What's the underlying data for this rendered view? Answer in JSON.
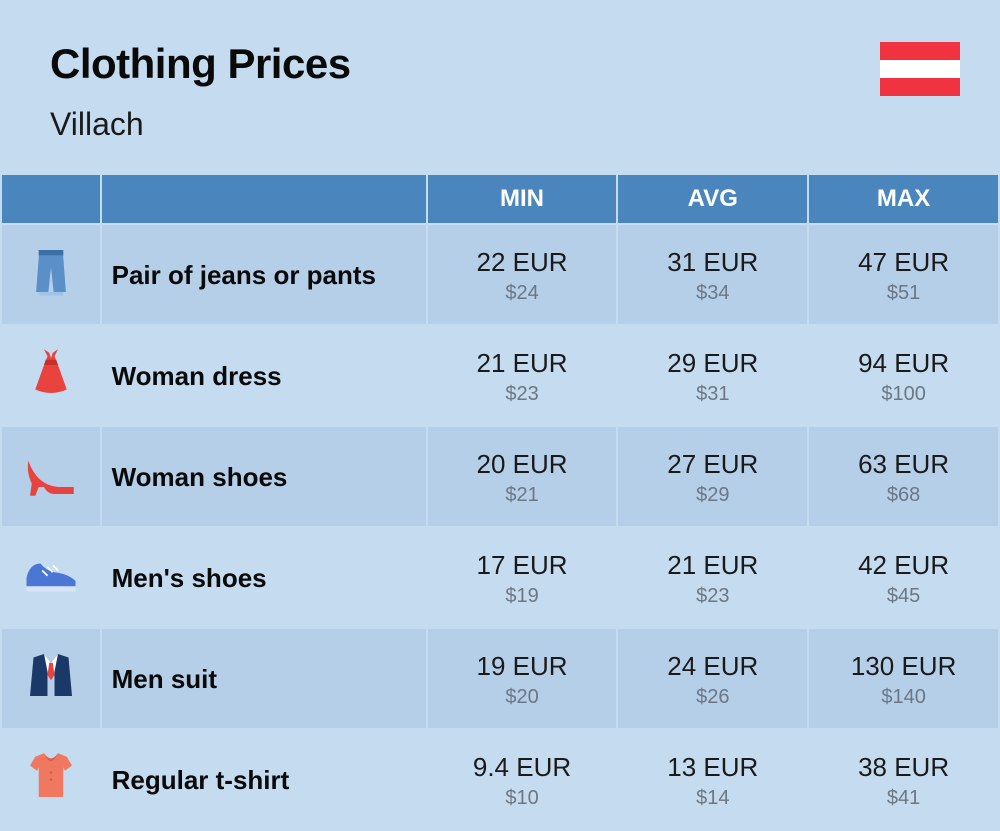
{
  "header": {
    "title": "Clothing Prices",
    "subtitle": "Villach"
  },
  "flag": {
    "country": "Austria",
    "colors": [
      "#ef3340",
      "#ffffff",
      "#ef3340"
    ]
  },
  "table": {
    "columns": [
      "MIN",
      "AVG",
      "MAX"
    ],
    "header_bg": "#4a86bd",
    "header_text_color": "#ffffff",
    "row_colors": [
      "#b6cfe8",
      "#c5dcf0"
    ],
    "eur_fontsize": 26,
    "usd_fontsize": 20,
    "usd_color": "#6b7785",
    "rows": [
      {
        "icon": "jeans",
        "label": "Pair of jeans or pants",
        "min_eur": "22 EUR",
        "min_usd": "$24",
        "avg_eur": "31 EUR",
        "avg_usd": "$34",
        "max_eur": "47 EUR",
        "max_usd": "$51"
      },
      {
        "icon": "dress",
        "label": "Woman dress",
        "min_eur": "21 EUR",
        "min_usd": "$23",
        "avg_eur": "29 EUR",
        "avg_usd": "$31",
        "max_eur": "94 EUR",
        "max_usd": "$100"
      },
      {
        "icon": "heel",
        "label": "Woman shoes",
        "min_eur": "20 EUR",
        "min_usd": "$21",
        "avg_eur": "27 EUR",
        "avg_usd": "$29",
        "max_eur": "63 EUR",
        "max_usd": "$68"
      },
      {
        "icon": "sneaker",
        "label": "Men's shoes",
        "min_eur": "17 EUR",
        "min_usd": "$19",
        "avg_eur": "21 EUR",
        "avg_usd": "$23",
        "max_eur": "42 EUR",
        "max_usd": "$45"
      },
      {
        "icon": "suit",
        "label": "Men suit",
        "min_eur": "19 EUR",
        "min_usd": "$20",
        "avg_eur": "24 EUR",
        "avg_usd": "$26",
        "max_eur": "130 EUR",
        "max_usd": "$140"
      },
      {
        "icon": "tshirt",
        "label": "Regular t-shirt",
        "min_eur": "9.4 EUR",
        "min_usd": "$10",
        "avg_eur": "13 EUR",
        "avg_usd": "$14",
        "max_eur": "38 EUR",
        "max_usd": "$41"
      }
    ]
  },
  "icon_colors": {
    "jeans": "#5a8fc7",
    "dress": "#e8433f",
    "heel": "#e8433f",
    "sneaker": "#4a77d4",
    "suit_jacket": "#1a3968",
    "suit_shirt": "#ffffff",
    "suit_tie": "#e8433f",
    "tshirt": "#f07860"
  }
}
